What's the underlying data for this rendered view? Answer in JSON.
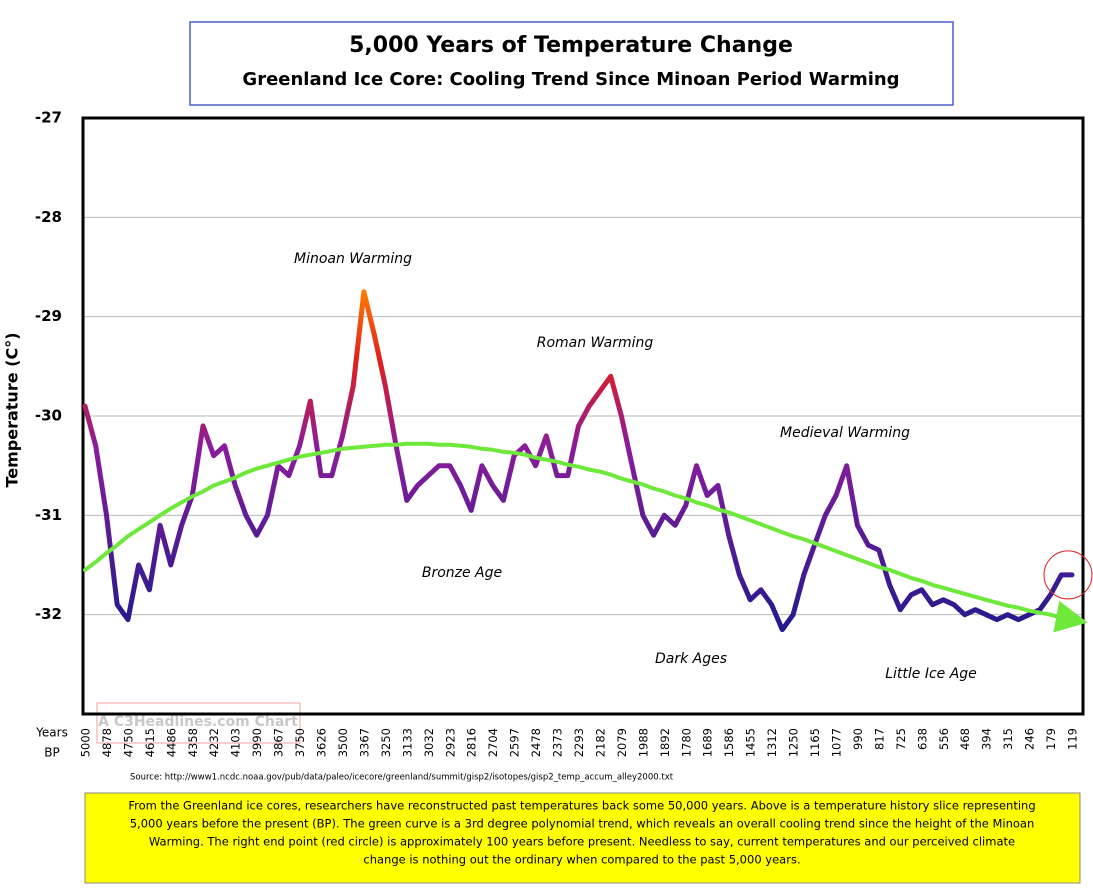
{
  "chart_data": {
    "type": "line",
    "title": "5,000 Years of Temperature Change",
    "subtitle": "Greenland Ice Core: Cooling Trend Since Minoan Period Warming",
    "y_label": "Temperature (C°)",
    "x_label": [
      "Years",
      "BP"
    ],
    "watermark": "A C3Headlines.com Chart",
    "source": "Source: http://www1.ncdc.noaa.gov/pub/data/paleo/icecore/greenland/summit/gisp2/isotopes/gisp2_temp_accum_alley2000.txt",
    "note": [
      "From the Greenland ice cores, researchers have reconstructed past temperatures back some 50,000 years. Above is a temperature history slice representing",
      "5,000 years before the present (BP). The green curve is a 3rd degree polynomial trend, which reveals an overall cooling trend since the height of the Minoan",
      "Warming. The right end point (red circle) is approximately 100 years before present. Needless to say, current temperatures and our perceived climate",
      "change is nothing out the ordinary when compared to the past 5,000 years."
    ],
    "annotations": [
      "Minoan Warming",
      "Roman Warming",
      "Medieval Warming",
      "Bronze Age",
      "Dark Ages",
      "Little Ice Age"
    ],
    "ylim": [
      -33,
      -27
    ],
    "yticks": [
      -32,
      -31,
      -30,
      -29,
      -28,
      -27
    ],
    "grid": true,
    "categories": [
      "5000",
      null,
      "4878",
      null,
      "4750",
      null,
      "4615",
      null,
      "4486",
      null,
      "4358",
      null,
      "4232",
      null,
      "4103",
      null,
      "3990",
      null,
      "3867",
      null,
      "3750",
      null,
      "3626",
      null,
      "3500",
      null,
      "3367",
      null,
      "3250",
      null,
      "3133",
      null,
      "3032",
      null,
      "2923",
      null,
      "2816",
      null,
      "2704",
      null,
      "2597",
      null,
      "2478",
      null,
      "2373",
      null,
      "2293",
      null,
      "2182",
      null,
      "2079",
      null,
      "1988",
      null,
      "1892",
      null,
      "1780",
      null,
      "1689",
      null,
      "1586",
      null,
      "1455",
      null,
      "1312",
      null,
      "1250",
      null,
      "1165",
      null,
      "1077",
      null,
      "990",
      null,
      "817",
      null,
      "725",
      null,
      "638",
      null,
      "556",
      null,
      "468",
      null,
      "394",
      null,
      "315",
      null,
      "246",
      null,
      "179",
      null,
      "119"
    ],
    "series": [
      {
        "color": "#8a1c9c",
        "values": [
          -29.9,
          -30.3,
          -31.0,
          -31.9,
          -32.05,
          -31.5,
          -31.75,
          -31.1,
          -31.5,
          -31.1,
          -30.8,
          -30.1,
          -30.4,
          -30.3,
          -30.7,
          -31.0,
          -31.2,
          -31.0,
          -30.5,
          -30.6,
          -30.3,
          -29.85,
          -30.6,
          -30.6,
          -30.2,
          -29.7,
          -28.75,
          -29.2,
          -29.7,
          -30.3,
          -30.85,
          -30.7,
          -30.6,
          -30.5,
          -30.5,
          -30.7,
          -30.95,
          -30.5,
          -30.7,
          -30.85,
          -30.4,
          -30.3,
          -30.5,
          -30.2,
          -30.6,
          -30.6,
          -30.1,
          -29.9,
          -29.75,
          -29.6,
          -30.0,
          -30.5,
          -31.0,
          -31.2,
          -31.0,
          -31.1,
          -30.9,
          -30.5,
          -30.8,
          -30.7,
          -31.2,
          -31.6,
          -31.85,
          -31.75,
          -31.9,
          -32.15,
          -32.0,
          -31.6,
          -31.3,
          -31.0,
          -30.8,
          -30.5,
          -31.1,
          -31.3,
          -31.35,
          -31.7,
          -31.95,
          -31.8,
          -31.75,
          -31.9,
          -31.85,
          -31.9,
          -32.0,
          -31.95,
          -32.0,
          -32.05,
          -32.0,
          -32.05,
          -32.0,
          -31.95,
          -31.8,
          -31.6,
          -31.6
        ]
      },
      {
        "color": "#6ee83a",
        "values": [
          -31.55,
          -31.47,
          -31.38,
          -31.3,
          -31.21,
          -31.14,
          -31.07,
          -31.0,
          -30.93,
          -30.87,
          -30.81,
          -30.76,
          -30.7,
          -30.66,
          -30.62,
          -30.57,
          -30.53,
          -30.5,
          -30.47,
          -30.44,
          -30.41,
          -30.39,
          -30.37,
          -30.35,
          -30.33,
          -30.32,
          -30.31,
          -30.3,
          -30.29,
          -30.29,
          -30.28,
          -30.28,
          -30.28,
          -30.29,
          -30.29,
          -30.3,
          -30.31,
          -30.33,
          -30.34,
          -30.36,
          -30.37,
          -30.39,
          -30.42,
          -30.44,
          -30.46,
          -30.49,
          -30.51,
          -30.54,
          -30.56,
          -30.59,
          -30.63,
          -30.66,
          -30.69,
          -30.73,
          -30.76,
          -30.8,
          -30.83,
          -30.87,
          -30.9,
          -30.94,
          -30.97,
          -31.01,
          -31.05,
          -31.09,
          -31.13,
          -31.17,
          -31.21,
          -31.24,
          -31.28,
          -31.32,
          -31.36,
          -31.4,
          -31.44,
          -31.48,
          -31.52,
          -31.55,
          -31.59,
          -31.63,
          -31.66,
          -31.7,
          -31.73,
          -31.76,
          -31.79,
          -31.82,
          -31.85,
          -31.88,
          -31.91,
          -31.93,
          -31.96,
          -31.98,
          -32.0,
          -32.03,
          -32.05
        ]
      }
    ]
  }
}
